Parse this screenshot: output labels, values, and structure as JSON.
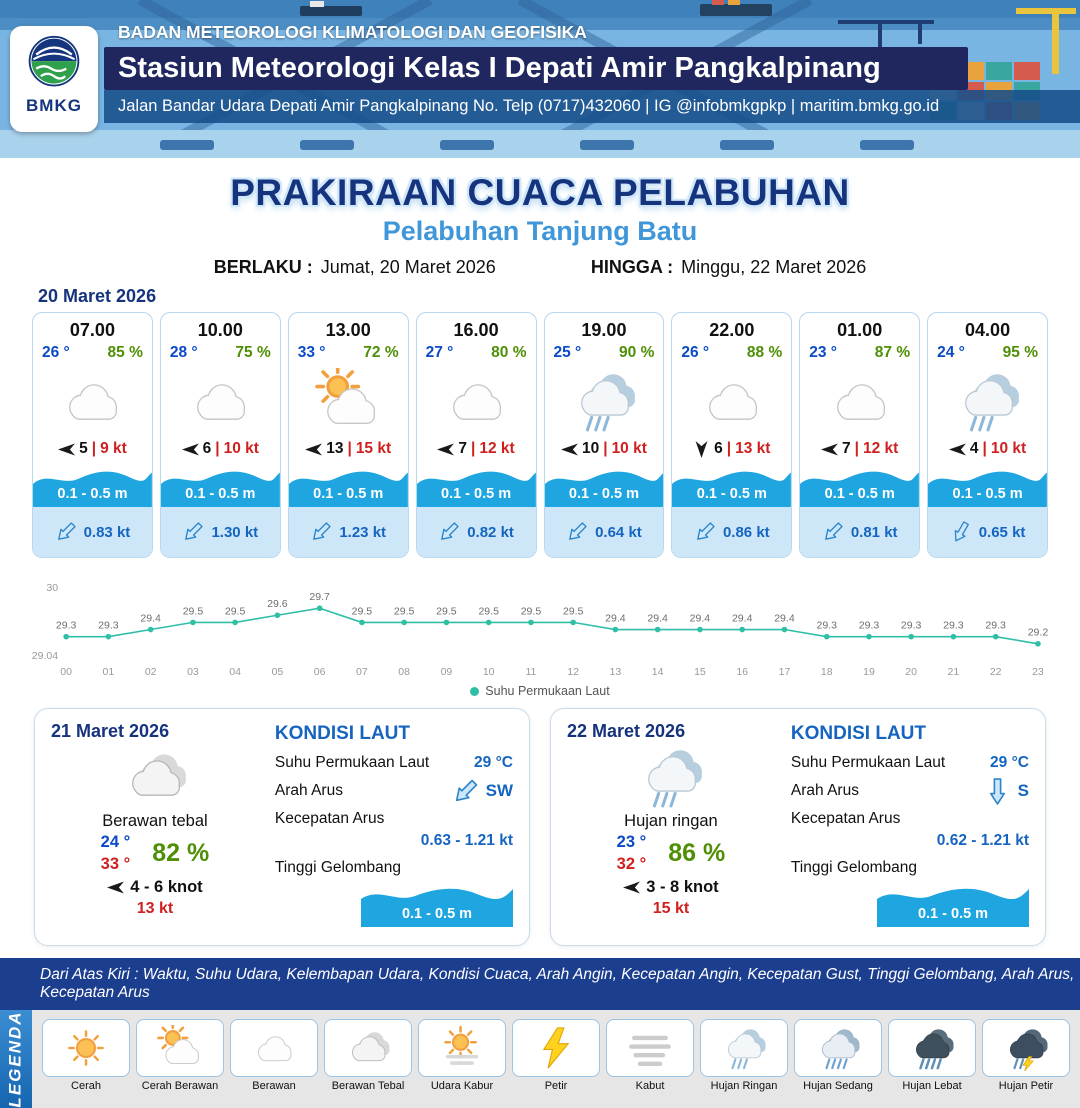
{
  "header": {
    "logo_text": "BMKG",
    "line1": "BADAN METEOROLOGI KLIMATOLOGI DAN GEOFISIKA",
    "line2": "Stasiun Meteorologi Kelas I Depati Amir Pangkalpinang",
    "line3": "Jalan Bandar Udara Depati Amir Pangkalpinang No. Telp (0717)432060 | IG @infobmkgpkp | maritim.bmkg.go.id"
  },
  "title": {
    "main": "PRAKIRAAN CUACA PELABUHAN",
    "sub": "Pelabuhan Tanjung Batu",
    "berlaku_label": "BERLAKU :",
    "berlaku_value": "Jumat, 20 Maret 2026",
    "hingga_label": "HINGGA :",
    "hingga_value": "Minggu, 22 Maret 2026"
  },
  "forecast": {
    "date": "20 Maret 2026",
    "wind_sep": "|",
    "cards": [
      {
        "time": "07.00",
        "temp": "26 °",
        "humidity": "85 %",
        "icon": "berawan",
        "wind_speed": "5",
        "gust": "9 kt",
        "wind_rot": 0,
        "wave": "0.1 - 0.5 m",
        "current_speed": "0.83 kt",
        "current_rot": -45
      },
      {
        "time": "10.00",
        "temp": "28 °",
        "humidity": "75 %",
        "icon": "berawan",
        "wind_speed": "6",
        "gust": "10 kt",
        "wind_rot": 0,
        "wave": "0.1 - 0.5 m",
        "current_speed": "1.30 kt",
        "current_rot": -45
      },
      {
        "time": "13.00",
        "temp": "33 °",
        "humidity": "72 %",
        "icon": "cerah-berawan",
        "wind_speed": "13",
        "gust": "15 kt",
        "wind_rot": 0,
        "wave": "0.1 - 0.5 m",
        "current_speed": "1.23 kt",
        "current_rot": -45
      },
      {
        "time": "16.00",
        "temp": "27 °",
        "humidity": "80 %",
        "icon": "berawan",
        "wind_speed": "7",
        "gust": "12 kt",
        "wind_rot": 0,
        "wave": "0.1 - 0.5 m",
        "current_speed": "0.82 kt",
        "current_rot": -45
      },
      {
        "time": "19.00",
        "temp": "25 °",
        "humidity": "90 %",
        "icon": "hujan-ringan",
        "wind_speed": "10",
        "gust": "10 kt",
        "wind_rot": 0,
        "wave": "0.1 - 0.5 m",
        "current_speed": "0.64 kt",
        "current_rot": -45
      },
      {
        "time": "22.00",
        "temp": "26 °",
        "humidity": "88 %",
        "icon": "berawan",
        "wind_speed": "6",
        "gust": "13 kt",
        "wind_rot": 270,
        "wave": "0.1 - 0.5 m",
        "current_speed": "0.86 kt",
        "current_rot": -45
      },
      {
        "time": "01.00",
        "temp": "23 °",
        "humidity": "87 %",
        "icon": "berawan",
        "wind_speed": "7",
        "gust": "12 kt",
        "wind_rot": 0,
        "wave": "0.1 - 0.5 m",
        "current_speed": "0.81 kt",
        "current_rot": -45
      },
      {
        "time": "04.00",
        "temp": "24 °",
        "humidity": "95 %",
        "icon": "hujan-ringan",
        "wind_speed": "4",
        "gust": "10 kt",
        "wind_rot": 0,
        "wave": "0.1 - 0.5 m",
        "current_speed": "0.65 kt",
        "current_rot": -60
      }
    ]
  },
  "chart_data": {
    "type": "line",
    "series_name": "Suhu Permukaan Laut",
    "x": [
      "00",
      "01",
      "02",
      "03",
      "04",
      "05",
      "06",
      "07",
      "08",
      "09",
      "10",
      "11",
      "12",
      "13",
      "14",
      "15",
      "16",
      "17",
      "18",
      "19",
      "20",
      "21",
      "22",
      "23"
    ],
    "values": [
      29.3,
      29.3,
      29.4,
      29.5,
      29.5,
      29.6,
      29.7,
      29.5,
      29.5,
      29.5,
      29.5,
      29.5,
      29.5,
      29.4,
      29.4,
      29.4,
      29.4,
      29.4,
      29.3,
      29.3,
      29.3,
      29.3,
      29.3,
      29.2
    ],
    "ylim": [
      29.04,
      30
    ],
    "line_color": "#2ebfa5",
    "grid": false,
    "legend_position": "bottom"
  },
  "sea_labels": {
    "title": "KONDISI LAUT",
    "sst": "Suhu Permukaan Laut",
    "arah": "Arah Arus",
    "kecepatan": "Kecepatan Arus",
    "tinggi": "Tinggi Gelombang"
  },
  "days": [
    {
      "date": "21 Maret 2026",
      "icon": "berawan-tebal",
      "condition": "Berawan tebal",
      "temp_min": "24 °",
      "temp_max": "33 °",
      "humidity": "82 %",
      "wind": "4 - 6 knot",
      "gust": "13 kt",
      "sea": {
        "sst": "29 °C",
        "current_dir": "SW",
        "current_rot": -45,
        "current_speed": "0.63 - 1.21 kt",
        "wave": "0.1 - 0.5 m"
      }
    },
    {
      "date": "22 Maret 2026",
      "icon": "hujan-ringan",
      "condition": "Hujan ringan",
      "temp_min": "23 °",
      "temp_max": "32 °",
      "humidity": "86 %",
      "wind": "3 - 8 knot",
      "gust": "15 kt",
      "sea": {
        "sst": "29 °C",
        "current_dir": "S",
        "current_rot": -90,
        "current_speed": "0.62 - 1.21 kt",
        "wave": "0.1 - 0.5 m"
      }
    }
  ],
  "notes": "Dari Atas Kiri : Waktu, Suhu Udara, Kelembapan Udara, Kondisi Cuaca, Arah Angin, Kecepatan Angin, Kecepatan Gust, Tinggi Gelombang, Arah Arus, Kecepatan Arus",
  "legend": {
    "title": "LEGENDA",
    "items": [
      {
        "label": "Cerah",
        "icon": "cerah"
      },
      {
        "label": "Cerah Berawan",
        "icon": "cerah-berawan"
      },
      {
        "label": "Berawan",
        "icon": "berawan"
      },
      {
        "label": "Berawan Tebal",
        "icon": "berawan-tebal"
      },
      {
        "label": "Udara Kabur",
        "icon": "udara-kabur"
      },
      {
        "label": "Petir",
        "icon": "petir"
      },
      {
        "label": "Kabut",
        "icon": "kabut"
      },
      {
        "label": "Hujan Ringan",
        "icon": "hujan-ringan"
      },
      {
        "label": "Hujan Sedang",
        "icon": "hujan-sedang"
      },
      {
        "label": "Hujan Lebat",
        "icon": "hujan-lebat"
      },
      {
        "label": "Hujan Petir",
        "icon": "hujan-petir"
      }
    ]
  },
  "colors": {
    "navy": "#16337e",
    "accent_blue": "#1565c0",
    "sub_blue": "#3f97d9",
    "humidity_green": "#4e8f06",
    "gust_red": "#d01f1f",
    "wave_blue": "#1fa6e0",
    "sst_line": "#2ebfa5"
  }
}
